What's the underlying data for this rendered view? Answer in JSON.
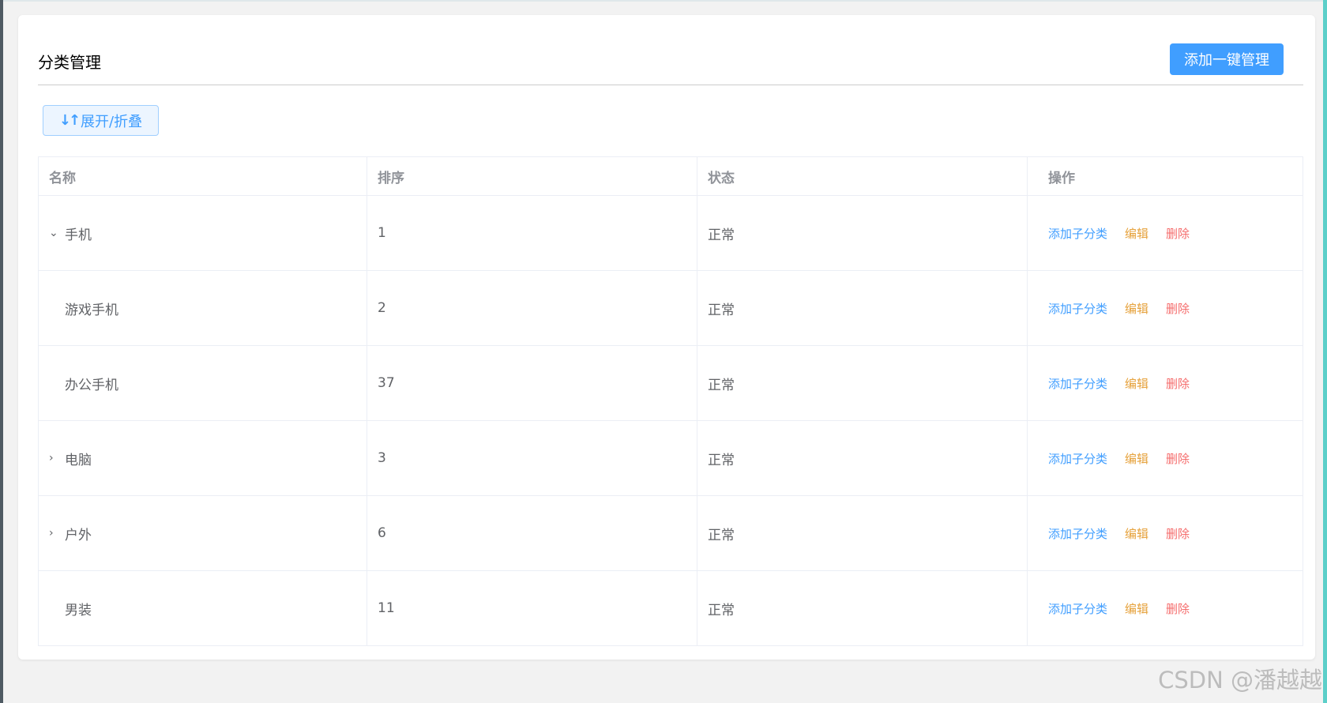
{
  "header": {
    "title": "分类管理",
    "add_button": "添加一键管理"
  },
  "toolbar": {
    "expand_icon": "↓↑",
    "expand_label": "展开/折叠"
  },
  "table": {
    "columns": [
      "名称",
      "排序",
      "状态",
      "操作"
    ],
    "rows": [
      {
        "name": "手机",
        "sort": "1",
        "status": "正常",
        "level": 0,
        "toggle": "expanded"
      },
      {
        "name": "游戏手机",
        "sort": "2",
        "status": "正常",
        "level": 1,
        "toggle": "none"
      },
      {
        "name": "办公手机",
        "sort": "37",
        "status": "正常",
        "level": 1,
        "toggle": "none"
      },
      {
        "name": "电脑",
        "sort": "3",
        "status": "正常",
        "level": 0,
        "toggle": "collapsed"
      },
      {
        "name": "户外",
        "sort": "6",
        "status": "正常",
        "level": 0,
        "toggle": "collapsed"
      },
      {
        "name": "男装",
        "sort": "11",
        "status": "正常",
        "level": 0,
        "toggle": "none"
      }
    ],
    "actions": {
      "add_child": "添加子分类",
      "edit": "编辑",
      "delete": "删除"
    }
  },
  "colors": {
    "primary": "#409eff",
    "warning": "#e6a23c",
    "danger": "#f56c6c"
  },
  "watermark": "CSDN @潘越越"
}
